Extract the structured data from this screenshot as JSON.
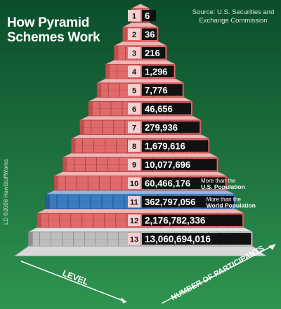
{
  "title_line1": "How Pyramid",
  "title_line2": "Schemes Work",
  "source_line1": "Source: U.S. Securities and",
  "source_line2": "Exchange Commission",
  "credit": "LD ©2008 HowStuffWorks",
  "level_axis_label": "LEVEL",
  "participants_axis_label": "NUMBER OF PARTICIPANTS",
  "colors": {
    "background_top": "#0f5a33",
    "background_bottom": "#2a8a4a",
    "brick": "#e06a6a",
    "brick_highlight": "#f08a8a",
    "brick_top": "#f2b3b3",
    "blue_level": "#3a7cc0",
    "gray_base": "#bdbdbd",
    "black_label": "#111111"
  },
  "levels": [
    {
      "level": "1",
      "participants": "6",
      "note_small": "",
      "note_big": "",
      "style": "red"
    },
    {
      "level": "2",
      "participants": "36",
      "note_small": "",
      "note_big": "",
      "style": "red"
    },
    {
      "level": "3",
      "participants": "216",
      "note_small": "",
      "note_big": "",
      "style": "red"
    },
    {
      "level": "4",
      "participants": "1,296",
      "note_small": "",
      "note_big": "",
      "style": "red"
    },
    {
      "level": "5",
      "participants": "7,776",
      "note_small": "",
      "note_big": "",
      "style": "red"
    },
    {
      "level": "6",
      "participants": "46,656",
      "note_small": "",
      "note_big": "",
      "style": "red"
    },
    {
      "level": "7",
      "participants": "279,936",
      "note_small": "",
      "note_big": "",
      "style": "red"
    },
    {
      "level": "8",
      "participants": "1,679,616",
      "note_small": "",
      "note_big": "",
      "style": "red"
    },
    {
      "level": "9",
      "participants": "10,077,696",
      "note_small": "",
      "note_big": "",
      "style": "red"
    },
    {
      "level": "10",
      "participants": "60,466,176",
      "note_small": "More than the",
      "note_big": "U.S. Population",
      "style": "red"
    },
    {
      "level": "11",
      "participants": "362,797,056",
      "note_small": "More than the",
      "note_big": "World Population",
      "style": "blue"
    },
    {
      "level": "12",
      "participants": "2,176,782,336",
      "note_small": "",
      "note_big": "",
      "style": "red"
    },
    {
      "level": "13",
      "participants": "13,060,694,016",
      "note_small": "",
      "note_big": "",
      "style": "gray"
    }
  ]
}
